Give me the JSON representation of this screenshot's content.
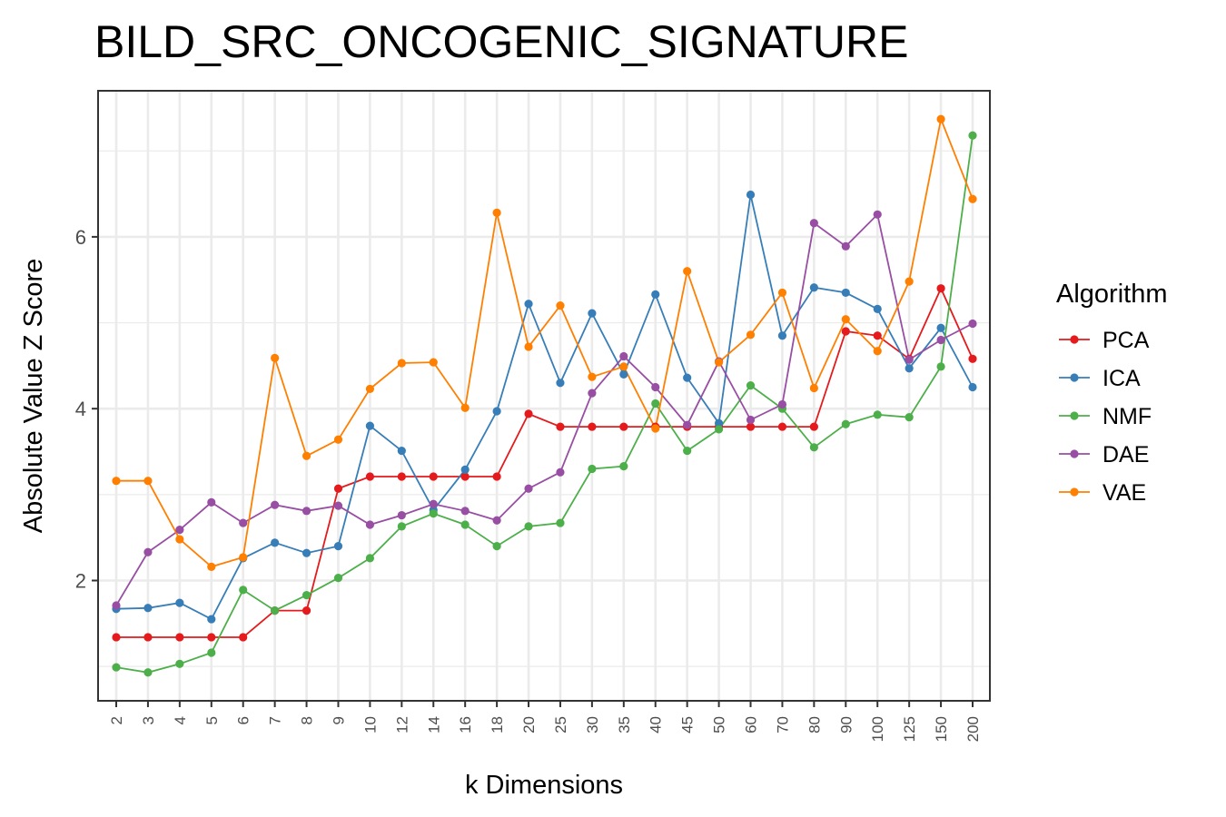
{
  "chart_data": {
    "type": "line",
    "title": "BILD_SRC_ONCOGENIC_SIGNATURE",
    "xlabel": "k Dimensions",
    "ylabel": "Absolute Value Z Score",
    "categories": [
      "2",
      "3",
      "4",
      "5",
      "6",
      "7",
      "8",
      "9",
      "10",
      "12",
      "14",
      "16",
      "18",
      "20",
      "25",
      "30",
      "35",
      "40",
      "45",
      "50",
      "60",
      "70",
      "80",
      "90",
      "100",
      "125",
      "150",
      "200"
    ],
    "yticks": [
      "2",
      "4",
      "6"
    ],
    "ylim": [
      0.6,
      7.7
    ],
    "grid": true,
    "legend_title": "Algorithm",
    "legend_position": "right",
    "series": [
      {
        "name": "PCA",
        "color": "#e41a1c",
        "values": [
          1.34,
          1.34,
          1.34,
          1.34,
          1.34,
          1.65,
          1.65,
          3.07,
          3.21,
          3.21,
          3.21,
          3.21,
          3.21,
          3.94,
          3.79,
          3.79,
          3.79,
          3.79,
          3.79,
          3.79,
          3.79,
          3.79,
          3.79,
          4.9,
          4.85,
          4.58,
          5.4,
          4.58
        ]
      },
      {
        "name": "ICA",
        "color": "#377eb8",
        "values": [
          1.67,
          1.68,
          1.74,
          1.55,
          2.26,
          2.44,
          2.32,
          2.4,
          3.8,
          3.51,
          2.82,
          3.29,
          3.97,
          5.22,
          4.3,
          5.11,
          4.4,
          5.33,
          4.36,
          3.83,
          6.49,
          4.85,
          5.41,
          5.35,
          5.16,
          4.47,
          4.94,
          4.25
        ]
      },
      {
        "name": "NMF",
        "color": "#4daf4a",
        "values": [
          0.99,
          0.93,
          1.03,
          1.16,
          1.89,
          1.65,
          1.83,
          2.03,
          2.26,
          2.63,
          2.78,
          2.65,
          2.4,
          2.63,
          2.67,
          3.3,
          3.33,
          4.06,
          3.51,
          3.76,
          4.27,
          4.0,
          3.55,
          3.82,
          3.93,
          3.9,
          4.49,
          7.18
        ]
      },
      {
        "name": "DAE",
        "color": "#984ea3",
        "values": [
          1.71,
          2.33,
          2.59,
          2.91,
          2.67,
          2.88,
          2.81,
          2.87,
          2.65,
          2.76,
          2.89,
          2.81,
          2.7,
          3.07,
          3.26,
          4.18,
          4.61,
          4.25,
          3.81,
          4.55,
          3.87,
          4.05,
          6.16,
          5.89,
          6.26,
          4.57,
          4.8,
          4.99
        ]
      },
      {
        "name": "VAE",
        "color": "#ff7f00",
        "values": [
          3.16,
          3.16,
          2.48,
          2.16,
          2.27,
          4.59,
          3.45,
          3.64,
          4.23,
          4.53,
          4.54,
          4.01,
          6.28,
          4.72,
          5.2,
          4.37,
          4.49,
          3.77,
          5.6,
          4.54,
          4.86,
          5.35,
          4.24,
          5.04,
          4.67,
          5.48,
          7.37,
          6.44
        ]
      }
    ]
  }
}
